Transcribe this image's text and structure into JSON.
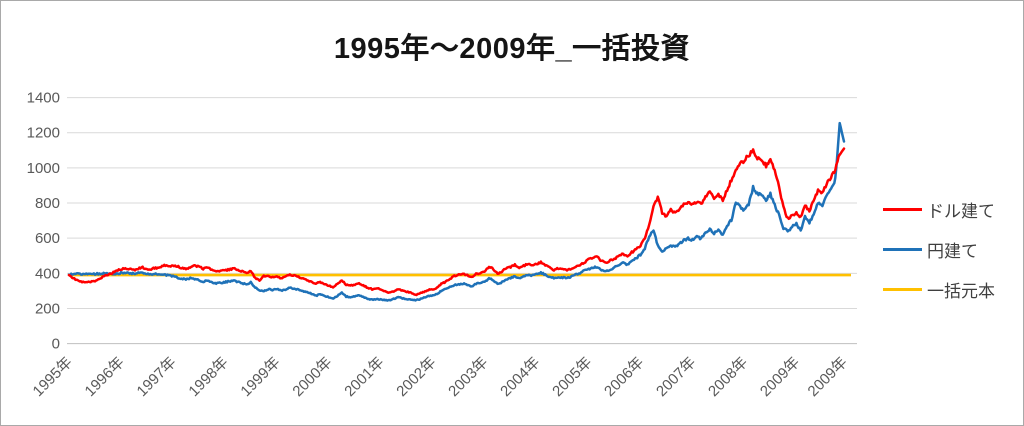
{
  "chart_data": {
    "type": "line",
    "title": "1995年～2009年_一括投資",
    "xlabel": "",
    "ylabel": "",
    "ylim": [
      0,
      1400
    ],
    "y_ticks": [
      0,
      200,
      400,
      600,
      800,
      1000,
      1200,
      1400
    ],
    "grid": "horizontal-only",
    "legend_position": "right",
    "x_unit": "monthly, Jan 1995 - Dec 2009",
    "x_tick_labels": [
      "1995年",
      "1996年",
      "1997年",
      "1998年",
      "1999年",
      "2000年",
      "2001年",
      "2002年",
      "2003年",
      "2004年",
      "2005年",
      "2006年",
      "2007年",
      "2008年",
      "2009年",
      "2009年"
    ],
    "axis_label_color": "#595959",
    "gridline_color": "#d9d9d9",
    "axisline_color": "#bfbfbf",
    "series": [
      {
        "name": "ドル建て",
        "color": "#ff0000",
        "values": [
          390,
          372,
          358,
          350,
          348,
          352,
          356,
          368,
          382,
          392,
          402,
          415,
          422,
          430,
          424,
          418,
          428,
          433,
          420,
          425,
          430,
          436,
          444,
          438,
          446,
          440,
          430,
          426,
          436,
          442,
          438,
          425,
          432,
          418,
          408,
          412,
          416,
          422,
          427,
          421,
          412,
          403,
          415,
          372,
          362,
          385,
          382,
          378,
          384,
          372,
          380,
          394,
          386,
          380,
          372,
          362,
          352,
          340,
          352,
          336,
          330,
          322,
          340,
          362,
          336,
          330,
          336,
          342,
          330,
          318,
          310,
          316,
          308,
          296,
          290,
          298,
          310,
          302,
          296,
          288,
          278,
          284,
          296,
          304,
          310,
          318,
          340,
          352,
          368,
          386,
          392,
          398,
          388,
          378,
          396,
          402,
          408,
          438,
          424,
          398,
          412,
          428,
          436,
          448,
          432,
          442,
          452,
          446,
          452,
          462,
          448,
          432,
          420,
          428,
          422,
          416,
          426,
          438,
          448,
          460,
          478,
          488,
          494,
          470,
          462,
          472,
          484,
          496,
          510,
          498,
          520,
          536,
          560,
          600,
          680,
          780,
          835,
          745,
          725,
          760,
          742,
          770,
          790,
          800,
          788,
          810,
          795,
          835,
          870,
          832,
          855,
          812,
          876,
          930,
          990,
          1020,
          1045,
          1075,
          1098,
          1060,
          1045,
          1010,
          1055,
          985,
          890,
          778,
          712,
          730,
          742,
          718,
          790,
          756,
          810,
          870,
          855,
          910,
          945,
          990,
          1075,
          1110
        ]
      },
      {
        "name": "円建て",
        "color": "#1f72b8",
        "values": [
          392,
          396,
          398,
          394,
          396,
          398,
          396,
          398,
          400,
          398,
          396,
          398,
          402,
          405,
          400,
          398,
          402,
          400,
          396,
          394,
          398,
          396,
          392,
          388,
          384,
          376,
          370,
          366,
          372,
          368,
          362,
          352,
          358,
          348,
          342,
          346,
          350,
          354,
          358,
          352,
          344,
          336,
          348,
          320,
          305,
          298,
          310,
          306,
          310,
          302,
          308,
          318,
          312,
          308,
          300,
          292,
          285,
          272,
          282,
          270,
          265,
          258,
          272,
          290,
          268,
          264,
          270,
          274,
          264,
          256,
          250,
          254,
          252,
          248,
          246,
          254,
          264,
          258,
          254,
          250,
          246,
          252,
          262,
          270,
          275,
          282,
          300,
          310,
          322,
          334,
          338,
          342,
          334,
          326,
          340,
          346,
          350,
          372,
          360,
          338,
          350,
          364,
          372,
          384,
          372,
          382,
          392,
          388,
          394,
          404,
          392,
          380,
          372,
          380,
          376,
          372,
          382,
          392,
          402,
          414,
          424,
          432,
          438,
          418,
          412,
          422,
          434,
          446,
          460,
          450,
          470,
          486,
          505,
          540,
          610,
          640,
          560,
          520,
          545,
          560,
          548,
          570,
          588,
          598,
          590,
          608,
          598,
          628,
          655,
          628,
          648,
          615,
          668,
          705,
          800,
          780,
          760,
          790,
          890,
          855,
          840,
          815,
          850,
          790,
          730,
          655,
          640,
          665,
          680,
          645,
          720,
          690,
          735,
          800,
          780,
          845,
          885,
          935,
          1255,
          1150
        ]
      },
      {
        "name": "一括元本",
        "color": "#ffc000",
        "constant": 390
      }
    ]
  }
}
